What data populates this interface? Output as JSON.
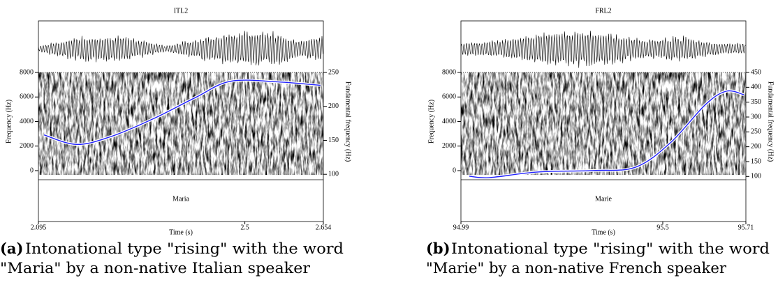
{
  "chart_data": [
    {
      "type": "line",
      "title": "ITL2",
      "xlabel": "Time (s)",
      "ylabel": "Frequency (Hz)",
      "y2label": "Fundamental frequency (Hz)",
      "ylim": [
        -740,
        8000
      ],
      "yticks": [
        0,
        2000,
        4000,
        6000,
        8000
      ],
      "y2lim": [
        92,
        250
      ],
      "y2ticks": [
        100,
        150,
        200,
        250
      ],
      "xlim": [
        2.095,
        2.654
      ],
      "xticks": [
        2.095,
        2.5,
        2.654
      ],
      "word": "Maria",
      "caption_label": "(a)",
      "caption_lines": [
        "Intonational type \"rising\" with the word",
        "\"Maria\" by a non-native Italian speaker"
      ],
      "f0": {
        "color": "#2020ff",
        "axis": "y2",
        "x": [
          2.106,
          2.17,
          2.239,
          2.321,
          2.403,
          2.472,
          2.567,
          2.648
        ],
        "values": [
          158,
          144,
          156,
          182,
          213,
          237,
          236,
          231
        ]
      }
    },
    {
      "type": "line",
      "title": "FRL2",
      "xlabel": "Time (s)",
      "ylabel": "Frequency (Hz)",
      "y2label": "Fundamental frequency (Hz)",
      "ylim": [
        -740,
        8000
      ],
      "yticks": [
        0,
        2000,
        4000,
        6000,
        8000
      ],
      "y2lim": [
        89,
        450
      ],
      "y2ticks": [
        100,
        150,
        200,
        250,
        300,
        350,
        400,
        450
      ],
      "xlim": [
        94.99,
        95.71
      ],
      "xticks": [
        94.99,
        95.5,
        95.71
      ],
      "word": "Marie",
      "caption_label": "(b)",
      "caption_lines": [
        "Intonational type \"rising\" with the word",
        "\"Marie\" by a non-native French speaker"
      ],
      "f0": {
        "color": "#2020ff",
        "axis": "y2",
        "x": [
          95.011,
          95.061,
          95.184,
          95.325,
          95.431,
          95.519,
          95.608,
          95.661,
          95.705
        ],
        "values": [
          101,
          96,
          115,
          120,
          131,
          213,
          342,
          387,
          375
        ]
      }
    }
  ]
}
